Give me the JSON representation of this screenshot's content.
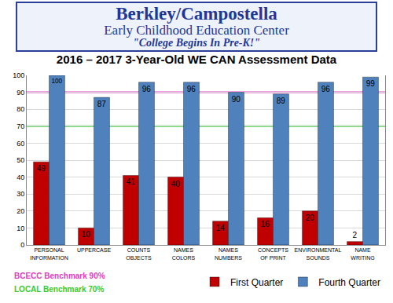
{
  "header": {
    "title": "Berkley/Campostella",
    "subtitle": "Early Childhood Education Center",
    "motto": "\"College Begins In Pre-K!\""
  },
  "chart_data": {
    "type": "bar",
    "title": "2016 – 2017 3-Year-Old WE CAN Assessment Data",
    "categories": [
      "PERSONAL INFORMATION",
      "UPPERCASE",
      "COUNTS OBJECTS",
      "NAMES COLORS",
      "NAMES NUMBERS",
      "CONCEPTS OF PRINT",
      "ENVIRONMENTAL SOUNDS",
      "NAME WRITING"
    ],
    "series": [
      {
        "name": "First Quarter",
        "color": "#c00000",
        "values": [
          49,
          10,
          41,
          40,
          14,
          16,
          20,
          2
        ]
      },
      {
        "name": "Fourth Quarter",
        "color": "#4f81bd",
        "values": [
          100,
          87,
          96,
          96,
          90,
          89,
          96,
          99
        ]
      }
    ],
    "ylim": [
      0,
      100
    ],
    "yticks": [
      0,
      10,
      20,
      30,
      40,
      50,
      60,
      70,
      80,
      90,
      100
    ],
    "grid": true,
    "data_labels": true,
    "legend": "bottom right",
    "benchmarks": [
      {
        "label": "BCECC Benchmark 90%",
        "value": 90,
        "color": "#e040c0"
      },
      {
        "label": "LOCAL Benchmark 70%",
        "value": 70,
        "color": "#33cc33"
      }
    ]
  }
}
